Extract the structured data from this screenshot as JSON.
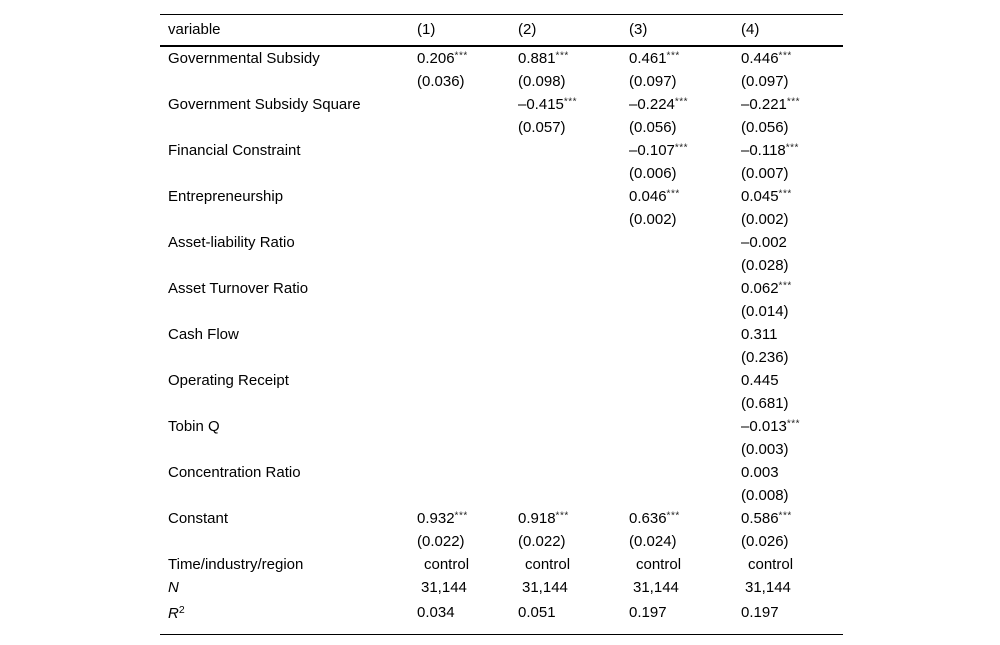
{
  "table": {
    "header": [
      "variable",
      "(1)",
      "(2)",
      "(3)",
      "(4)"
    ],
    "variables": [
      {
        "name": "Governmental Subsidy",
        "coef": [
          "0.206***",
          "0.881***",
          "0.461***",
          "0.446***"
        ],
        "se": [
          "(0.036)",
          "(0.098)",
          "(0.097)",
          "(0.097)"
        ]
      },
      {
        "name": "Government Subsidy Square",
        "coef": [
          "",
          "–0.415***",
          "–0.224***",
          "–0.221***"
        ],
        "se": [
          "",
          "(0.057)",
          "(0.056)",
          "(0.056)"
        ]
      },
      {
        "name": "Financial Constraint",
        "coef": [
          "",
          "",
          "–0.107***",
          "–0.118***"
        ],
        "se": [
          "",
          "",
          "(0.006)",
          "(0.007)"
        ]
      },
      {
        "name": "Entrepreneurship",
        "coef": [
          "",
          "",
          "0.046***",
          "0.045***"
        ],
        "se": [
          "",
          "",
          "(0.002)",
          "(0.002)"
        ]
      },
      {
        "name": "Asset-liability Ratio",
        "coef": [
          "",
          "",
          "",
          "–0.002"
        ],
        "se": [
          "",
          "",
          "",
          "(0.028)"
        ]
      },
      {
        "name": "Asset Turnover Ratio",
        "coef": [
          "",
          "",
          "",
          "0.062***"
        ],
        "se": [
          "",
          "",
          "",
          "(0.014)"
        ]
      },
      {
        "name": "Cash Flow",
        "coef": [
          "",
          "",
          "",
          "0.311"
        ],
        "se": [
          "",
          "",
          "",
          "(0.236)"
        ]
      },
      {
        "name": "Operating Receipt",
        "coef": [
          "",
          "",
          "",
          "0.445"
        ],
        "se": [
          "",
          "",
          "",
          "(0.681)"
        ]
      },
      {
        "name": "Tobin Q",
        "coef": [
          "",
          "",
          "",
          "–0.013***"
        ],
        "se": [
          "",
          "",
          "",
          "(0.003)"
        ]
      },
      {
        "name": "Concentration Ratio",
        "coef": [
          "",
          "",
          "",
          "0.003"
        ],
        "se": [
          "",
          "",
          "",
          "(0.008)"
        ]
      },
      {
        "name": "Constant",
        "coef": [
          "0.932***",
          "0.918***",
          "0.636***",
          "0.586***"
        ],
        "se": [
          "(0.022)",
          "(0.022)",
          "(0.024)",
          "(0.026)"
        ]
      }
    ],
    "summary": [
      {
        "label": "Time/industry/region",
        "italic": false,
        "sup": "",
        "values": [
          "control",
          "control",
          "control",
          "control"
        ]
      },
      {
        "label": "N",
        "italic": true,
        "sup": "",
        "values": [
          "31,144",
          "31,144",
          "31,144",
          "31,144"
        ]
      },
      {
        "label": "R",
        "italic": true,
        "sup": "2",
        "values": [
          "0.034",
          "0.051",
          "0.197",
          "0.197"
        ]
      }
    ]
  }
}
